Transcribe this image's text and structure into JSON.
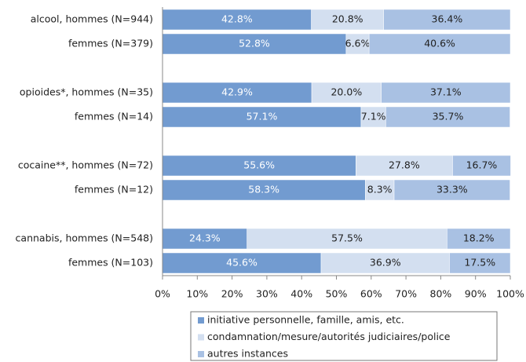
{
  "chart_data": {
    "type": "stacked_barh",
    "categories": [
      "alcool, hommes (N=944)",
      "femmes (N=379)",
      "opioides*, hommes (N=35)",
      "femmes (N=14)",
      "cocaine**, hommes (N=72)",
      "femmes (N=12)",
      "cannabis, hommes (N=548)",
      "femmes (N=103)"
    ],
    "series": [
      {
        "name": "initiative personnelle, famille, amis, etc.",
        "color": "#729bd0",
        "label_color": "#ffffff",
        "values": [
          42.8,
          52.8,
          42.9,
          57.1,
          55.6,
          58.3,
          24.3,
          45.6
        ],
        "value_labels": [
          "42.8%",
          "52.8%",
          "42.9%",
          "57.1%",
          "55.6%",
          "58.3%",
          "24.3%",
          "45.6%"
        ]
      },
      {
        "name": "condamnation/mesure/autorités judiciaires/police",
        "color": "#d3dff0",
        "label_color": "#222222",
        "values": [
          20.8,
          6.6,
          20.0,
          7.1,
          27.8,
          8.3,
          57.5,
          36.9
        ],
        "value_labels": [
          "20.8%",
          "6.6%",
          "20.0%",
          "7.1%",
          "27.8%",
          "8.3%",
          "57.5%",
          "36.9%"
        ]
      },
      {
        "name": "autres instances",
        "color": "#a9c1e3",
        "label_color": "#222222",
        "values": [
          36.4,
          40.6,
          37.1,
          35.7,
          16.7,
          33.3,
          18.2,
          17.5
        ],
        "value_labels": [
          "36.4%",
          "40.6%",
          "37.1%",
          "35.7%",
          "16.7%",
          "33.3%",
          "18.2%",
          "17.5%"
        ]
      }
    ],
    "xlim": [
      0,
      100
    ],
    "xticks": [
      {
        "value": 0,
        "label": "0%"
      },
      {
        "value": 10,
        "label": "10%"
      },
      {
        "value": 20,
        "label": "20%"
      },
      {
        "value": 30,
        "label": "30%"
      },
      {
        "value": 40,
        "label": "40%"
      },
      {
        "value": 50,
        "label": "50%"
      },
      {
        "value": 60,
        "label": "60%"
      },
      {
        "value": 70,
        "label": "70%"
      },
      {
        "value": 80,
        "label": "80%"
      },
      {
        "value": 90,
        "label": "90%"
      },
      {
        "value": 100,
        "label": "100%"
      }
    ],
    "grid": false,
    "legend": "bottom"
  }
}
